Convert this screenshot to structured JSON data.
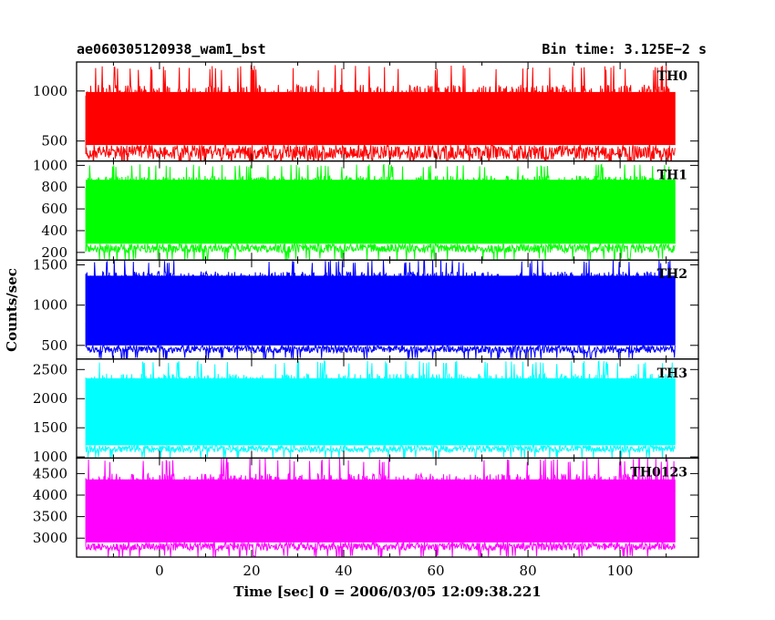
{
  "chart_data": {
    "type": "line",
    "title_left": "ae060305120938_wam1_bst",
    "title_right": "Bin time: 3.125E−2 s",
    "xlabel": "Time [sec] 0 = 2006/03/05 12:09:38.221",
    "ylabel": "Counts/sec",
    "xlim": [
      -18,
      117
    ],
    "x_range": [
      -16,
      112
    ],
    "bin_time": 0.03125,
    "x_ticks": [
      0,
      20,
      40,
      60,
      80,
      100
    ],
    "grid": false,
    "panels": [
      {
        "name": "TH0",
        "color": "#ff0000",
        "ylim": [
          300,
          1290
        ],
        "yticks": [
          500,
          1000
        ],
        "base_low": 200,
        "base_high": 460,
        "mid": 600,
        "peak_mean": 900,
        "peak_max": 1260
      },
      {
        "name": "TH1",
        "color": "#00ff00",
        "ylim": [
          130,
          1040
        ],
        "yticks": [
          200,
          400,
          600,
          800,
          1000
        ],
        "base_low": 130,
        "base_high": 280,
        "mid": 510,
        "peak_mean": 820,
        "peak_max": 1010
      },
      {
        "name": "TH2",
        "color": "#0000ff",
        "ylim": [
          330,
          1560
        ],
        "yticks": [
          500,
          1000,
          1500
        ],
        "base_low": 330,
        "base_high": 500,
        "mid": 800,
        "peak_mean": 1300,
        "peak_max": 1560
      },
      {
        "name": "TH3",
        "color": "#00ffff",
        "ylim": [
          980,
          2680
        ],
        "yticks": [
          1000,
          1500,
          2000,
          2500
        ],
        "base_low": 980,
        "base_high": 1200,
        "mid": 1700,
        "peak_mean": 2250,
        "peak_max": 2650
      },
      {
        "name": "TH0123",
        "color": "#ff00ff",
        "ylim": [
          2560,
          4860
        ],
        "yticks": [
          3000,
          3500,
          4000,
          4500
        ],
        "base_low": 2560,
        "base_high": 2900,
        "mid": 3500,
        "peak_mean": 4200,
        "peak_max": 4860
      }
    ]
  }
}
